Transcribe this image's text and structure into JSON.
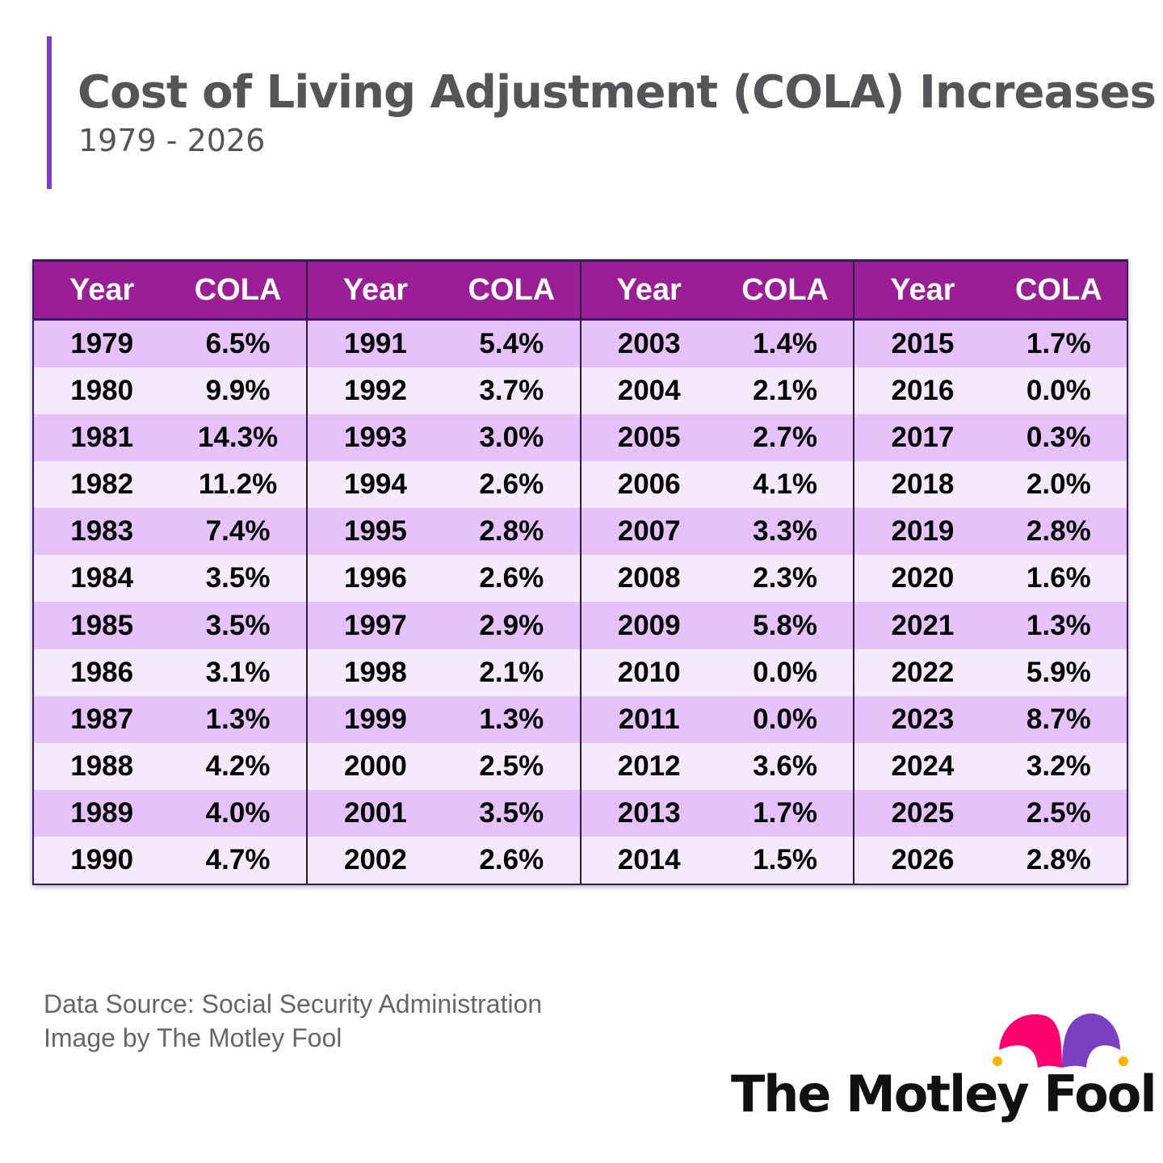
{
  "title": "Cost of Living Adjustment (COLA) Increases",
  "subtitle": "1979 - 2026",
  "colors": {
    "accent": "#7b3fc4",
    "header": "#9a1f96",
    "row_dark": "#e6c2fb",
    "row_light": "#f5e9fc",
    "border": "#3b1a6e"
  },
  "chart_data": {
    "type": "table",
    "columns": [
      "Year",
      "COLA"
    ],
    "groups": [
      [
        [
          "1979",
          "6.5%"
        ],
        [
          "1980",
          "9.9%"
        ],
        [
          "1981",
          "14.3%"
        ],
        [
          "1982",
          "11.2%"
        ],
        [
          "1983",
          "7.4%"
        ],
        [
          "1984",
          "3.5%"
        ],
        [
          "1985",
          "3.5%"
        ],
        [
          "1986",
          "3.1%"
        ],
        [
          "1987",
          "1.3%"
        ],
        [
          "1988",
          "4.2%"
        ],
        [
          "1989",
          "4.0%"
        ],
        [
          "1990",
          "4.7%"
        ]
      ],
      [
        [
          "1991",
          "5.4%"
        ],
        [
          "1992",
          "3.7%"
        ],
        [
          "1993",
          "3.0%"
        ],
        [
          "1994",
          "2.6%"
        ],
        [
          "1995",
          "2.8%"
        ],
        [
          "1996",
          "2.6%"
        ],
        [
          "1997",
          "2.9%"
        ],
        [
          "1998",
          "2.1%"
        ],
        [
          "1999",
          "1.3%"
        ],
        [
          "2000",
          "2.5%"
        ],
        [
          "2001",
          "3.5%"
        ],
        [
          "2002",
          "2.6%"
        ]
      ],
      [
        [
          "2003",
          "1.4%"
        ],
        [
          "2004",
          "2.1%"
        ],
        [
          "2005",
          "2.7%"
        ],
        [
          "2006",
          "4.1%"
        ],
        [
          "2007",
          "3.3%"
        ],
        [
          "2008",
          "2.3%"
        ],
        [
          "2009",
          "5.8%"
        ],
        [
          "2010",
          "0.0%"
        ],
        [
          "2011",
          "0.0%"
        ],
        [
          "2012",
          "3.6%"
        ],
        [
          "2013",
          "1.7%"
        ],
        [
          "2014",
          "1.5%"
        ]
      ],
      [
        [
          "2015",
          "1.7%"
        ],
        [
          "2016",
          "0.0%"
        ],
        [
          "2017",
          "0.3%"
        ],
        [
          "2018",
          "2.0%"
        ],
        [
          "2019",
          "2.8%"
        ],
        [
          "2020",
          "1.6%"
        ],
        [
          "2021",
          "1.3%"
        ],
        [
          "2022",
          "5.9%"
        ],
        [
          "2023",
          "8.7%"
        ],
        [
          "2024",
          "3.2%"
        ],
        [
          "2025",
          "2.5%"
        ],
        [
          "2026",
          "2.8%"
        ]
      ]
    ]
  },
  "footer": {
    "source": "Data Source: Social Security Administration",
    "credit": "Image by The Motley Fool"
  },
  "logo": {
    "text": "The Motley Fool",
    "icon": "jester-hat-icon"
  }
}
